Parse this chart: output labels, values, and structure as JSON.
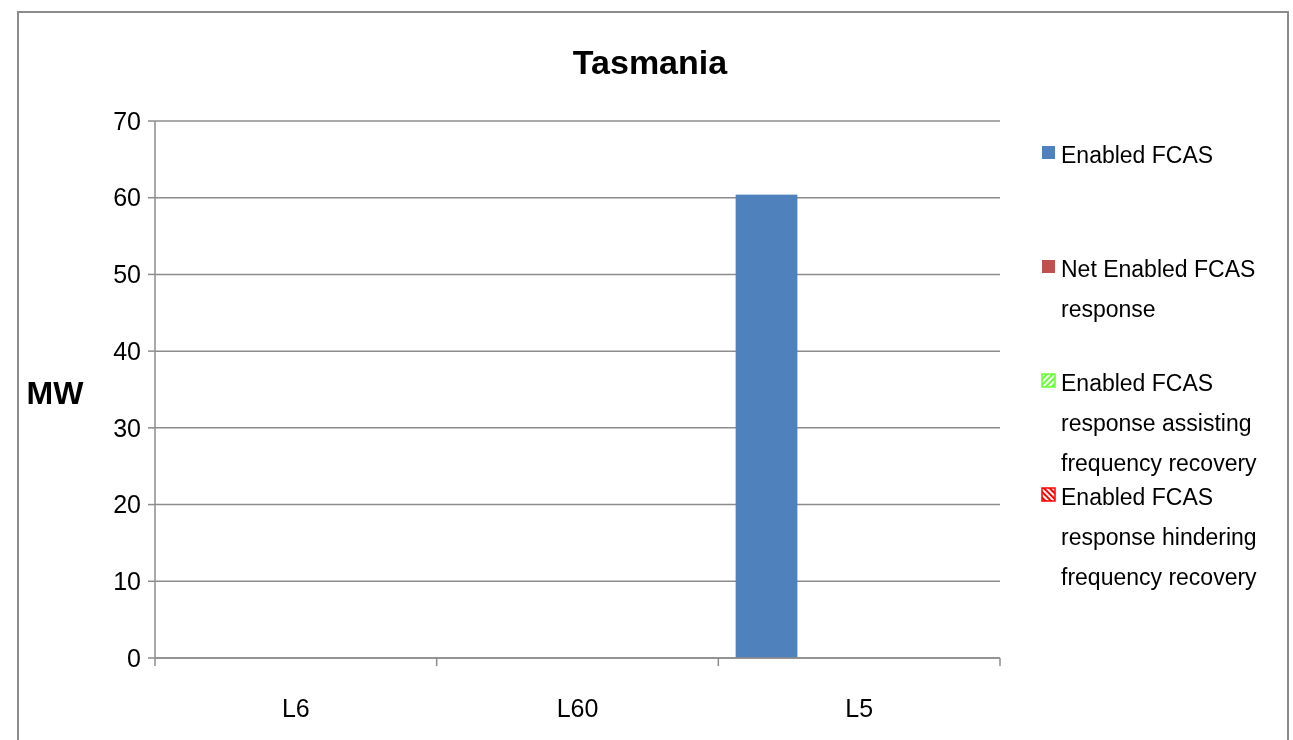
{
  "chart_data": {
    "type": "bar",
    "title": "Tasmania",
    "ylabel": "MW",
    "categories": [
      "L6",
      "L60",
      "L5"
    ],
    "series": [
      {
        "name": "Enabled FCAS",
        "color": "#4f81bd",
        "values": [
          0,
          0,
          60.4
        ]
      },
      {
        "name": "Net Enabled FCAS response",
        "color": "#c0504d",
        "values": [
          0,
          0,
          0
        ]
      },
      {
        "name": "Enabled FCAS response assisting frequency recovery",
        "color": "#66ff33",
        "values": [
          0,
          0,
          0
        ]
      },
      {
        "name": "Enabled FCAS response hindering frequency recovery",
        "color": "#ff0000",
        "values": [
          0,
          0,
          0
        ]
      }
    ],
    "ylim": [
      0,
      70
    ],
    "yticks": [
      0,
      10,
      20,
      30,
      40,
      50,
      60,
      70
    ],
    "grid": "y",
    "legend": "right"
  }
}
